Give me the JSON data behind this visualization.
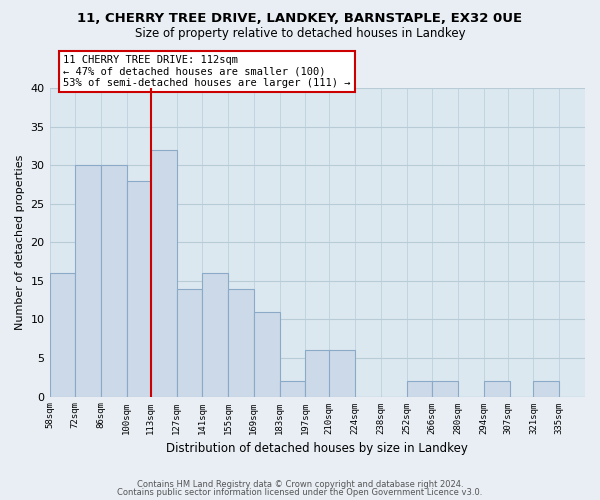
{
  "title": "11, CHERRY TREE DRIVE, LANDKEY, BARNSTAPLE, EX32 0UE",
  "subtitle": "Size of property relative to detached houses in Landkey",
  "xlabel": "Distribution of detached houses by size in Landkey",
  "ylabel": "Number of detached properties",
  "bar_color": "#ccd9e8",
  "bar_edgecolor": "#8aaac8",
  "reference_line_color": "#cc0000",
  "categories": [
    "58sqm",
    "72sqm",
    "86sqm",
    "100sqm",
    "113sqm",
    "127sqm",
    "141sqm",
    "155sqm",
    "169sqm",
    "183sqm",
    "197sqm",
    "210sqm",
    "224sqm",
    "238sqm",
    "252sqm",
    "266sqm",
    "280sqm",
    "294sqm",
    "307sqm",
    "321sqm",
    "335sqm"
  ],
  "bin_edges": [
    58,
    72,
    86,
    100,
    113,
    127,
    141,
    155,
    169,
    183,
    197,
    210,
    224,
    238,
    252,
    266,
    280,
    294,
    307,
    321,
    335
  ],
  "bin_width": 14,
  "values": [
    16,
    30,
    30,
    28,
    32,
    14,
    16,
    14,
    11,
    2,
    6,
    6,
    0,
    0,
    2,
    2,
    0,
    2,
    0,
    2,
    0
  ],
  "ref_bin_idx": 4,
  "ylim": [
    0,
    40
  ],
  "yticks": [
    0,
    5,
    10,
    15,
    20,
    25,
    30,
    35,
    40
  ],
  "annotation_text": "11 CHERRY TREE DRIVE: 112sqm\n← 47% of detached houses are smaller (100)\n53% of semi-detached houses are larger (111) →",
  "footer_line1": "Contains HM Land Registry data © Crown copyright and database right 2024.",
  "footer_line2": "Contains public sector information licensed under the Open Government Licence v3.0.",
  "bg_color": "#e8eef4",
  "plot_bg_color": "#dce8f0",
  "grid_color": "#b8ccd8"
}
